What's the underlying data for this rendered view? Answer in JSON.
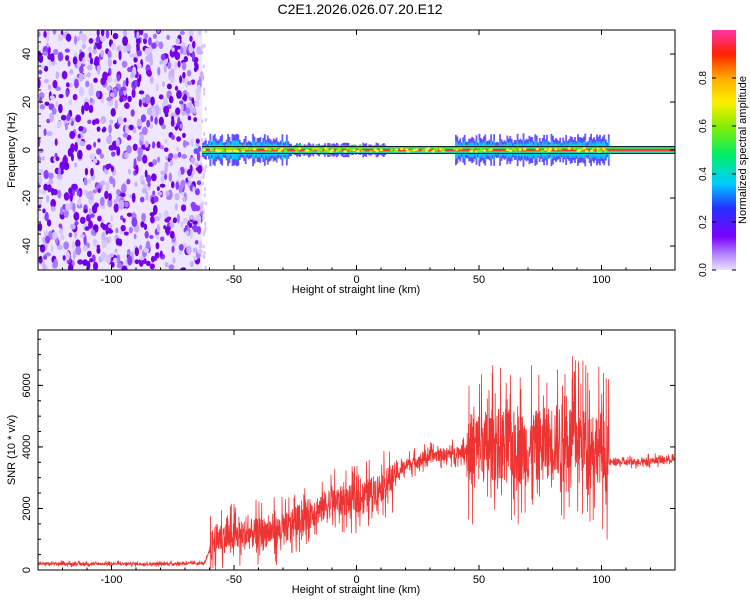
{
  "title": "C2E1.2026.026.07.20.E12",
  "colorbar": {
    "label": "Normalized spectral amplitude",
    "ticks": [
      "0.0",
      "0.2",
      "0.4",
      "0.6",
      "0.8"
    ],
    "range": [
      0,
      1
    ]
  },
  "chart_data": [
    {
      "type": "heatmap",
      "title": "C2E1.2026.026.07.20.E12",
      "xlabel": "Height of straight line (km)",
      "ylabel": "Frequency (Hz)",
      "xlim": [
        -130,
        130
      ],
      "ylim": [
        -50,
        50
      ],
      "xticks": [
        "-100",
        "-50",
        "0",
        "50",
        "100"
      ],
      "yticks": [
        "-40",
        "-20",
        "0",
        "20",
        "40"
      ],
      "noise_region_x": [
        -130,
        -63
      ],
      "signal_region_x": [
        -63,
        130
      ],
      "signal_band_center_hz": 0,
      "signal_band_halfwidth_hz": 2,
      "colorscale": "rainbow (violet=0, red=1)"
    },
    {
      "type": "line",
      "xlabel": "Height of straight line (km)",
      "ylabel": "SNR (10 * v/v)",
      "xlim": [
        -130,
        130
      ],
      "ylim": [
        0,
        7800
      ],
      "xticks": [
        "-100",
        "-50",
        "0",
        "50",
        "100"
      ],
      "yticks": [
        "0",
        "2000",
        "4000",
        "6000"
      ],
      "color": "#ee3333",
      "series": [
        {
          "x": [
            -130,
            -100,
            -80,
            -62,
            -58,
            -50,
            -40,
            -30,
            -20,
            -10,
            0,
            10,
            15,
            20,
            30,
            40,
            50,
            60,
            70,
            80,
            90,
            100,
            103,
            110,
            120,
            130
          ],
          "y": [
            200,
            200,
            200,
            220,
            1000,
            1100,
            1200,
            1300,
            1800,
            2200,
            2300,
            2700,
            3000,
            3400,
            3700,
            3800,
            4000,
            4100,
            3900,
            4200,
            4300,
            4000,
            3500,
            3500,
            3550,
            3600
          ]
        }
      ]
    }
  ]
}
